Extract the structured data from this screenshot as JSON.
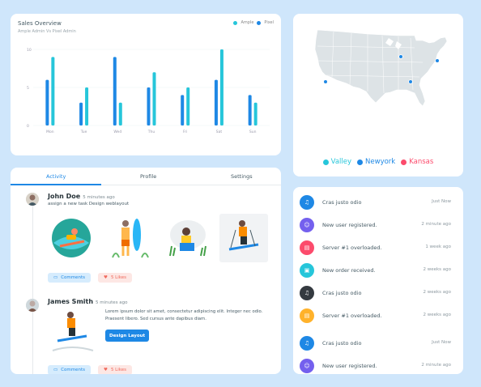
{
  "sales": {
    "title": "Sales Overview",
    "subtitle": "Ample Admin Vs Pixel Admin",
    "legend": [
      {
        "label": "Ample",
        "color": "#26c6da"
      },
      {
        "label": "Pixel",
        "color": "#1e88e5"
      }
    ]
  },
  "chart_data": {
    "type": "bar",
    "categories": [
      "Mon",
      "Tue",
      "Wed",
      "Thu",
      "Fri",
      "Sat",
      "Sun"
    ],
    "series": [
      {
        "name": "Pixel",
        "color": "#1e88e5",
        "values": [
          6,
          3,
          9,
          5,
          4,
          6,
          4
        ]
      },
      {
        "name": "Ample",
        "color": "#26c6da",
        "values": [
          9,
          5,
          3,
          7,
          5,
          10,
          3
        ]
      }
    ],
    "yticks": [
      "0",
      "5",
      "10"
    ],
    "ylim": [
      0,
      10
    ],
    "grid": true,
    "legend": "top-right"
  },
  "map": {
    "legend": [
      {
        "label": "Valley",
        "color": "#26c6da"
      },
      {
        "label": "Newyork",
        "color": "#1e88e5"
      },
      {
        "label": "Kansas",
        "color": "#fc4b6c"
      }
    ]
  },
  "activity": {
    "tabs": [
      "Activity",
      "Profile",
      "Settings"
    ],
    "items": [
      {
        "name": "John Doe",
        "time": "5 minutes ago",
        "desc": "assign a new task Design weblayout"
      },
      {
        "name": "James Smith",
        "time": "5 minutes ago",
        "desc": "Lorem ipsum dolor sit amet, consectetur adipiscing elit. Integer nec odio. Praesent libero. Sed cursus ante dapibus diam.",
        "button": "Design Layout"
      }
    ],
    "comments_label": "Comments",
    "likes_label": "5 Likes"
  },
  "notifications": [
    {
      "text": "Cras justo odio",
      "time": "Just Now",
      "color": "#1e88e5",
      "icon": "bell-icon"
    },
    {
      "text": "New user registered.",
      "time": "2 minute ago",
      "color": "#7460ee",
      "icon": "user-icon"
    },
    {
      "text": "Server #1 overloaded.",
      "time": "1 week ago",
      "color": "#fc4b6c",
      "icon": "server-icon"
    },
    {
      "text": "New order received.",
      "time": "2 weeks ago",
      "color": "#26c6da",
      "icon": "bag-icon"
    },
    {
      "text": "Cras justo odio",
      "time": "2 weeks ago",
      "color": "#343a40",
      "icon": "bell-icon"
    },
    {
      "text": "Server #1 overloaded.",
      "time": "2 weeks ago",
      "color": "#ffb22b",
      "icon": "server-icon"
    },
    {
      "text": "Cras justo odio",
      "time": "Just Now",
      "color": "#1e88e5",
      "icon": "bell-icon"
    },
    {
      "text": "New user registered.",
      "time": "2 minute ago",
      "color": "#7460ee",
      "icon": "user-icon"
    }
  ]
}
